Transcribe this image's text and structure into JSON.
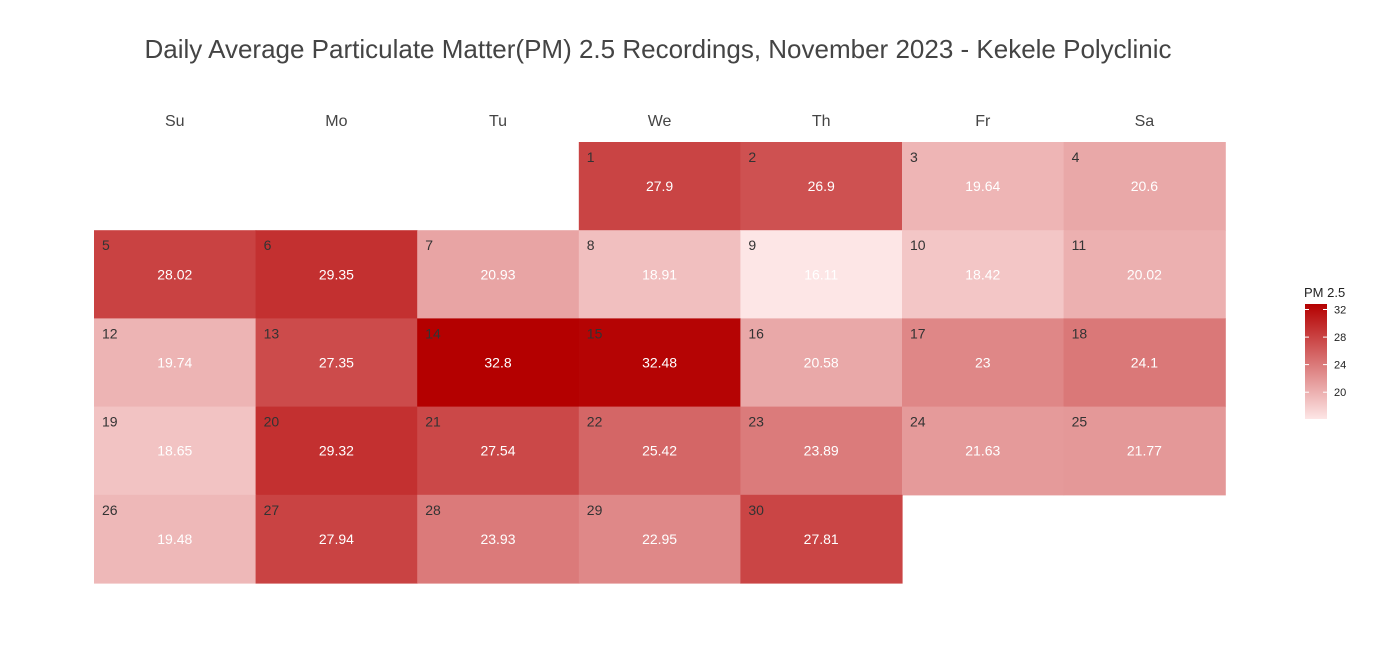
{
  "chart_data": {
    "type": "heatmap",
    "title": "Daily Average Particulate Matter(PM) 2.5 Recordings, November 2023 - Kekele Polyclinic",
    "weekdays": [
      "Su",
      "Mo",
      "Tu",
      "We",
      "Th",
      "Fr",
      "Sa"
    ],
    "first_weekday_index": 3,
    "days": [
      1,
      2,
      3,
      4,
      5,
      6,
      7,
      8,
      9,
      10,
      11,
      12,
      13,
      14,
      15,
      16,
      17,
      18,
      19,
      20,
      21,
      22,
      23,
      24,
      25,
      26,
      27,
      28,
      29,
      30
    ],
    "values": [
      27.9,
      26.9,
      19.64,
      20.6,
      28.02,
      29.35,
      20.93,
      18.91,
      16.11,
      18.42,
      20.02,
      19.74,
      27.35,
      32.8,
      32.48,
      20.58,
      23,
      24.1,
      18.65,
      29.32,
      27.54,
      25.42,
      23.89,
      21.63,
      21.77,
      19.48,
      27.94,
      23.93,
      22.95,
      27.81
    ],
    "value_labels": [
      "27.9",
      "26.9",
      "19.64",
      "20.6",
      "28.02",
      "29.35",
      "20.93",
      "18.91",
      "16.11",
      "18.42",
      "20.02",
      "19.74",
      "27.35",
      "32.8",
      "32.48",
      "20.58",
      "23",
      "24.1",
      "18.65",
      "29.32",
      "27.54",
      "25.42",
      "23.89",
      "21.63",
      "21.77",
      "19.48",
      "27.94",
      "23.93",
      "22.95",
      "27.81"
    ],
    "legend": {
      "title": "PM 2.5",
      "ticks": [
        20,
        24,
        28,
        32
      ],
      "tick_labels": [
        "20",
        "24",
        "28",
        "32"
      ],
      "placement": "right"
    },
    "color_range": [
      16.11,
      32.8
    ],
    "colors": {
      "low": "#fde6e6",
      "high": "#b40000"
    }
  }
}
